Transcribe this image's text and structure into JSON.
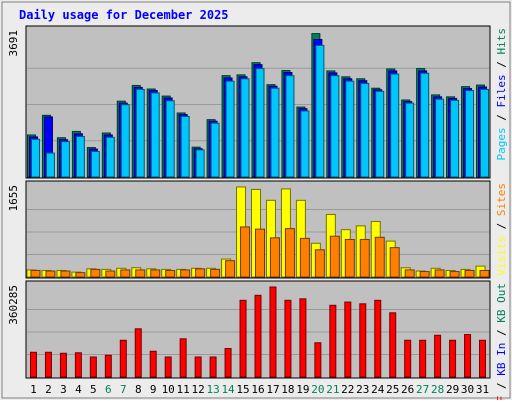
{
  "chart_data": {
    "type": "bar",
    "title": "Daily usage for December 2025",
    "colors": {
      "background": "#ececec",
      "panel": "#c0c0c0",
      "title": "#0000ff",
      "pages": "#00c6fc",
      "files": "#0000ff",
      "hits": "#00805c",
      "visits": "#ffff00",
      "sites": "#ff8000",
      "kbin": "#0000ff",
      "kbout": "#00805c",
      "kbf": "#ff0000"
    },
    "categories": [
      "1",
      "2",
      "3",
      "4",
      "5",
      "6",
      "7",
      "8",
      "9",
      "10",
      "11",
      "12",
      "13",
      "14",
      "15",
      "16",
      "17",
      "18",
      "19",
      "20",
      "21",
      "22",
      "23",
      "24",
      "25",
      "26",
      "27",
      "28",
      "29",
      "30",
      "31"
    ],
    "weekend_days": [
      "6",
      "7",
      "13",
      "14",
      "20",
      "21",
      "27",
      "28"
    ],
    "panels": [
      {
        "id": "hits",
        "max_label": "3691",
        "ylim": [
          0,
          3691
        ],
        "right_labels": [
          {
            "text": "Pages",
            "color": "#00c6fc"
          },
          {
            "text": "Files",
            "color": "#0000ff"
          },
          {
            "text": "Hits",
            "color": "#00805c"
          }
        ],
        "series": [
          {
            "name": "Hits",
            "color": "#00805c",
            "values": [
              1070,
              1570,
              1000,
              1160,
              750,
              1120,
              1930,
              2330,
              2240,
              2060,
              1630,
              760,
              1460,
              2580,
              2600,
              2910,
              2350,
              2710,
              1780,
              3650,
              2700,
              2550,
              2500,
              2260,
              2750,
              1960,
              2760,
              2090,
              2040,
              2300,
              2340
            ]
          },
          {
            "name": "Files",
            "color": "#0000ff",
            "values": [
              1020,
              1530,
              950,
              1100,
              710,
              1070,
              1880,
              2280,
              2200,
              2010,
              1590,
              720,
              1420,
              2520,
              2550,
              2860,
              2310,
              2660,
              1740,
              3500,
              2650,
              2500,
              2450,
              2220,
              2700,
              1920,
              2700,
              2040,
              2000,
              2250,
              2290
            ]
          },
          {
            "name": "Pages",
            "color": "#00c6fc",
            "values": [
              960,
              610,
              900,
              1030,
              650,
              1010,
              1840,
              2230,
              2140,
              1940,
              1540,
              690,
              1370,
              2440,
              2500,
              2760,
              2260,
              2580,
              1680,
              3350,
              2580,
              2440,
              2380,
              2180,
              2620,
              1880,
              2640,
              1980,
              1950,
              2200,
              2230
            ]
          }
        ]
      },
      {
        "id": "visits",
        "max_label": "1655",
        "ylim": [
          0,
          1655
        ],
        "right_labels": [
          {
            "text": "Visits",
            "color": "#ffff00"
          },
          {
            "text": "Sites",
            "color": "#ff8000"
          }
        ],
        "series": [
          {
            "name": "Visits",
            "color": "#ffff00",
            "values": [
              130,
              120,
              120,
              90,
              150,
              140,
              160,
              170,
              150,
              140,
              140,
              160,
              160,
              330,
              1655,
              1610,
              1410,
              1620,
              1410,
              620,
              1150,
              870,
              940,
              1020,
              660,
              170,
              110,
              160,
              120,
              140,
              200
            ]
          },
          {
            "name": "Sites",
            "color": "#ff8000",
            "values": [
              120,
              110,
              110,
              80,
              140,
              110,
              130,
              130,
              130,
              120,
              130,
              150,
              140,
              300,
              920,
              880,
              720,
              890,
              710,
              500,
              750,
              690,
              690,
              730,
              540,
              130,
              100,
              130,
              100,
              120,
              120
            ]
          }
        ]
      },
      {
        "id": "kbytes",
        "max_label": "360285",
        "ylim": [
          0,
          360285
        ],
        "right_labels": [
          {
            "text": "KB F",
            "color": "#ff0000"
          },
          {
            "text": "KB In",
            "color": "#0000ff"
          },
          {
            "text": "KB Out",
            "color": "#00805c"
          }
        ],
        "series": [
          {
            "name": "KB F",
            "color": "#ff0000",
            "values": [
              99000,
              99000,
              95000,
              97000,
              80000,
              87000,
              147000,
              193000,
              103000,
              80000,
              153000,
              80000,
              80000,
              114000,
              307000,
              327000,
              360285,
              307000,
              313000,
              137000,
              287000,
              300000,
              293000,
              307000,
              257000,
              147000,
              147000,
              167000,
              147000,
              170000,
              147000
            ]
          }
        ]
      }
    ]
  }
}
